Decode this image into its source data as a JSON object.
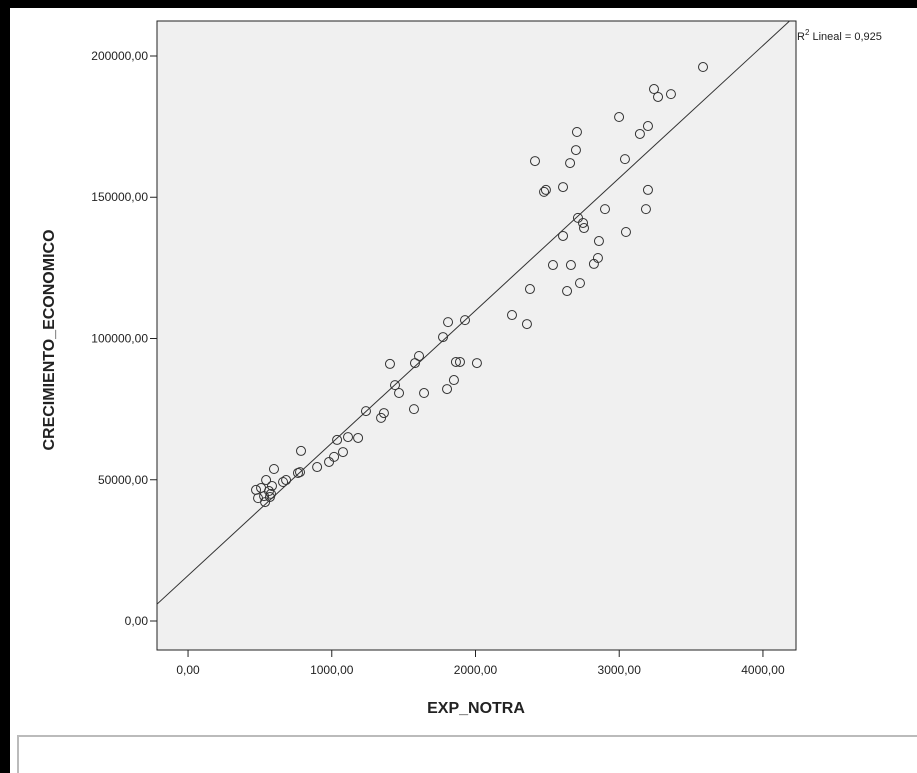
{
  "chart_data": {
    "type": "scatter",
    "x_label": "EXP_NOTRA",
    "y_label": "CRECIMIENTO_ECONOMICO",
    "annotation": [
      "R",
      "2",
      " Lineal = 0,925"
    ],
    "x": [
      473,
      508,
      487,
      529,
      543,
      563,
      536,
      584,
      577,
      598,
      570,
      661,
      682,
      765,
      779,
      786,
      898,
      981,
      1016,
      1037,
      1078,
      1113,
      1183,
      1238,
      1343,
      1363,
      1405,
      1440,
      1468,
      1572,
      1579,
      1607,
      1642,
      1802,
      1774,
      1809,
      1850,
      1864,
      1892,
      1927,
      2010,
      2254,
      2358,
      2379,
      2414,
      2477,
      2490,
      2539,
      2609,
      2609,
      2637,
      2658,
      2664,
      2699,
      2706,
      2713,
      2727,
      2748,
      2755,
      2824,
      2852,
      2859,
      2901,
      2999,
      3040,
      3047,
      3144,
      3186,
      3200,
      3200,
      3242,
      3270,
      3360,
      3583
    ],
    "values": [
      46400,
      47100,
      43500,
      44200,
      49900,
      46000,
      42100,
      47800,
      45000,
      53800,
      43900,
      49200,
      49900,
      52400,
      52700,
      60200,
      54500,
      56300,
      58100,
      64100,
      59800,
      65100,
      64800,
      74300,
      71900,
      73600,
      91000,
      83500,
      80700,
      75000,
      91300,
      93800,
      80700,
      82100,
      100500,
      105800,
      85300,
      91700,
      91700,
      106500,
      91300,
      108300,
      105100,
      117500,
      162800,
      151900,
      152600,
      126000,
      136300,
      153600,
      116800,
      162100,
      126000,
      166700,
      173100,
      142700,
      119600,
      140900,
      139100,
      126400,
      128500,
      134500,
      145800,
      178400,
      163500,
      137700,
      172400,
      145800,
      175200,
      152600,
      188300,
      185500,
      186500,
      196100
    ],
    "marker_color": "#333333",
    "fit_line": {
      "intercept": 16100,
      "slope": 46.9
    },
    "xlim": [
      -216,
      4230
    ],
    "ylim": [
      -10265,
      212389
    ],
    "xticks": [
      {
        "value": 0,
        "label": "0,00"
      },
      {
        "value": 1000,
        "label": "1000,00"
      },
      {
        "value": 2000,
        "label": "2000,00"
      },
      {
        "value": 3000,
        "label": "3000,00"
      },
      {
        "value": 4000,
        "label": "4000,00"
      }
    ],
    "yticks": [
      {
        "value": 0,
        "label": "0,00"
      },
      {
        "value": 50000,
        "label": "50000,00"
      },
      {
        "value": 100000,
        "label": "100000,00"
      },
      {
        "value": 150000,
        "label": "150000,00"
      },
      {
        "value": 200000,
        "label": "200000,00"
      }
    ],
    "plot_background": "#f0f0f0"
  }
}
